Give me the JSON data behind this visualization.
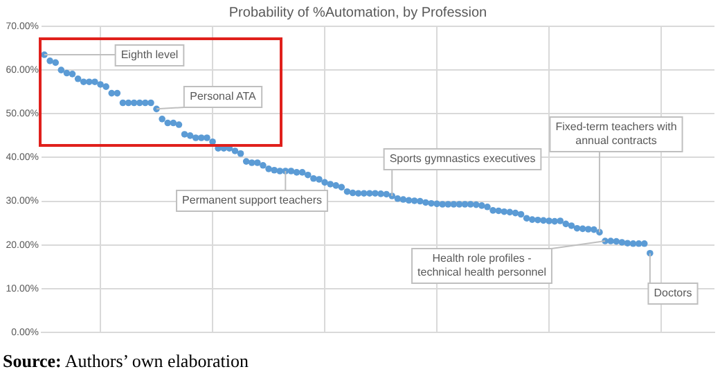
{
  "chart_data": {
    "type": "scatter",
    "title": "Probability of %Automation, by Profession",
    "categories": [
      null,
      null,
      null,
      null,
      null,
      null,
      null,
      null,
      null,
      null,
      null,
      null,
      null,
      null,
      null,
      null,
      null,
      null,
      null,
      null,
      null,
      null,
      null,
      null,
      null,
      null,
      null,
      null,
      null,
      null,
      null,
      null,
      null,
      null,
      null,
      null,
      null,
      null,
      null,
      null,
      null,
      null,
      null,
      null,
      null,
      null,
      null,
      null,
      null,
      null,
      null,
      null,
      null,
      null,
      null,
      null,
      null,
      null,
      null,
      null,
      null,
      null,
      null,
      null,
      null,
      null,
      null,
      null,
      null,
      null,
      null,
      null,
      null,
      null,
      null,
      null,
      null,
      null,
      null,
      null,
      null,
      null,
      null,
      null,
      null,
      null,
      null,
      null,
      null,
      null,
      null,
      null,
      null,
      null,
      null,
      null,
      null,
      null,
      null,
      null,
      null,
      null,
      null,
      null,
      null,
      null,
      null,
      null,
      null,
      null,
      null,
      null,
      null,
      null,
      null,
      null,
      null,
      null,
      null,
      null
    ],
    "values": [
      63.5,
      62.1,
      61.7,
      60.0,
      59.3,
      59.1,
      58.0,
      57.3,
      57.3,
      57.3,
      56.7,
      56.2,
      54.7,
      54.7,
      52.5,
      52.5,
      52.5,
      52.5,
      52.5,
      52.5,
      51.1,
      48.8,
      47.9,
      47.9,
      47.5,
      45.3,
      45.0,
      44.5,
      44.5,
      44.5,
      43.6,
      42.1,
      42.1,
      42.1,
      41.5,
      40.9,
      39.1,
      38.8,
      38.8,
      38.2,
      37.4,
      37.1,
      36.9,
      36.9,
      36.9,
      36.6,
      36.6,
      36.0,
      35.2,
      35.0,
      34.3,
      33.9,
      33.6,
      33.2,
      32.2,
      31.9,
      31.8,
      31.8,
      31.8,
      31.8,
      31.7,
      31.6,
      31.2,
      30.6,
      30.4,
      30.2,
      30.1,
      30.0,
      29.7,
      29.5,
      29.4,
      29.3,
      29.3,
      29.3,
      29.3,
      29.3,
      29.3,
      29.2,
      29.0,
      28.7,
      27.9,
      27.8,
      27.6,
      27.5,
      27.3,
      27.0,
      26.1,
      25.8,
      25.7,
      25.6,
      25.5,
      25.4,
      25.5,
      24.8,
      24.4,
      23.8,
      23.7,
      23.6,
      23.5,
      22.9,
      20.9,
      20.9,
      20.8,
      20.6,
      20.4,
      20.3,
      20.3,
      20.3,
      18.1,
      null,
      null,
      null,
      null,
      null,
      null,
      null,
      null,
      null,
      null,
      null
    ],
    "color": "#5b9bd5",
    "marker": "circle",
    "ylim": [
      0,
      70
    ],
    "yticks": [
      {
        "value": 0,
        "label": "0.00%"
      },
      {
        "value": 10,
        "label": "10.00%"
      },
      {
        "value": 20,
        "label": "20.00%"
      },
      {
        "value": 30,
        "label": "30.00%"
      },
      {
        "value": 40,
        "label": "40.00%"
      },
      {
        "value": 50,
        "label": "50.00%"
      },
      {
        "value": 60,
        "label": "60.00%"
      },
      {
        "value": 70,
        "label": "70.00%"
      }
    ],
    "tick_labels": "y",
    "grid": true,
    "legend": false,
    "annotations": [
      "Eighth level",
      "Personal ATA",
      "Permanent support teachers",
      "Sports gymnastics executives",
      "Fixed-term teachers with annual contracts",
      "Health role profiles - technical health personnel",
      "Doctors",
      "Source: Authors’ own elaboration"
    ]
  }
}
